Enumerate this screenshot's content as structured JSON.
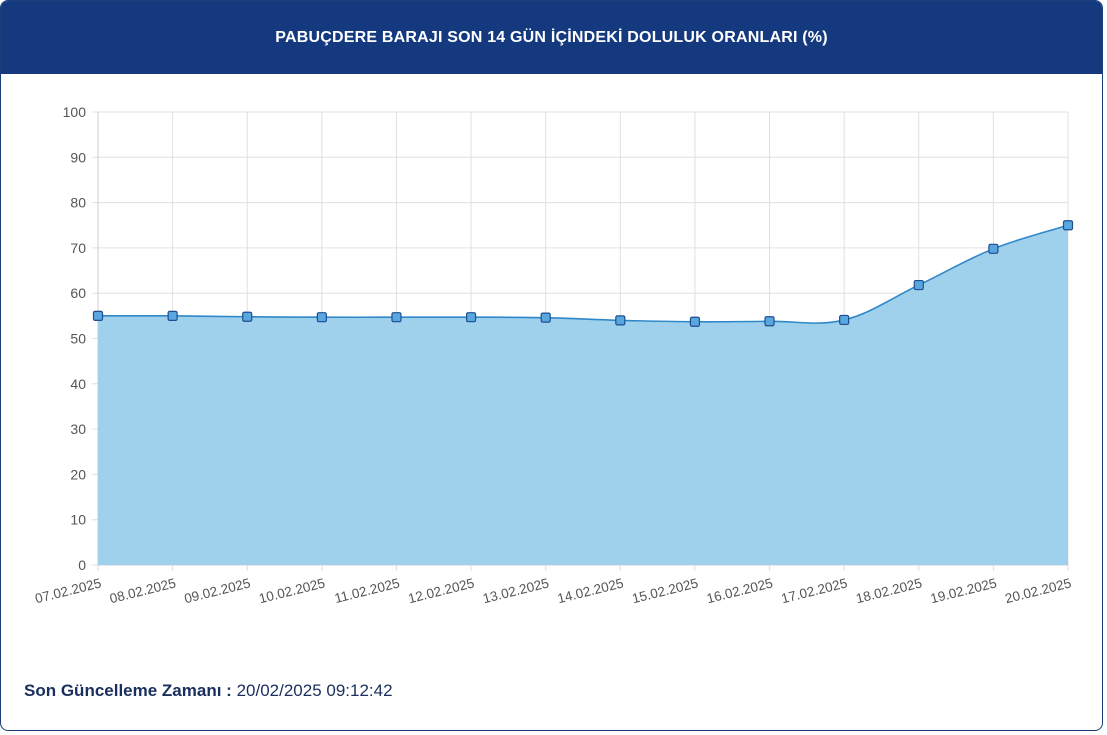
{
  "header": {
    "title": "PABUÇDERE BARAJI SON 14 GÜN İÇİNDEKİ DOLULUK ORANLARI (%)"
  },
  "footer": {
    "label": "Son Güncelleme Zamanı :",
    "value": "20/02/2025 09:12:42"
  },
  "colors": {
    "header_bg": "#14397f",
    "line": "#2f88c9",
    "fill": "#9fd1ec",
    "marker_fill": "#5aa7e0",
    "marker_stroke": "#1e4e8f",
    "grid": "#e0e0e0",
    "tick_text": "#555555"
  },
  "chart_data": {
    "type": "area",
    "title": "PABUÇDERE BARAJI SON 14 GÜN İÇİNDEKİ DOLULUK ORANLARI (%)",
    "xlabel": "",
    "ylabel": "",
    "categories": [
      "07.02.2025",
      "08.02.2025",
      "09.02.2025",
      "10.02.2025",
      "11.02.2025",
      "12.02.2025",
      "13.02.2025",
      "14.02.2025",
      "15.02.2025",
      "16.02.2025",
      "17.02.2025",
      "18.02.2025",
      "19.02.2025",
      "20.02.2025"
    ],
    "values": [
      55.0,
      55.0,
      54.8,
      54.7,
      54.7,
      54.7,
      54.6,
      54.0,
      53.7,
      53.8,
      54.1,
      61.8,
      69.8,
      75.0
    ],
    "ylim": [
      0,
      100
    ],
    "yticks": [
      0,
      10,
      20,
      30,
      40,
      50,
      60,
      70,
      80,
      90,
      100
    ],
    "grid": true,
    "legend": "none",
    "smooth": true,
    "markers": "square"
  }
}
